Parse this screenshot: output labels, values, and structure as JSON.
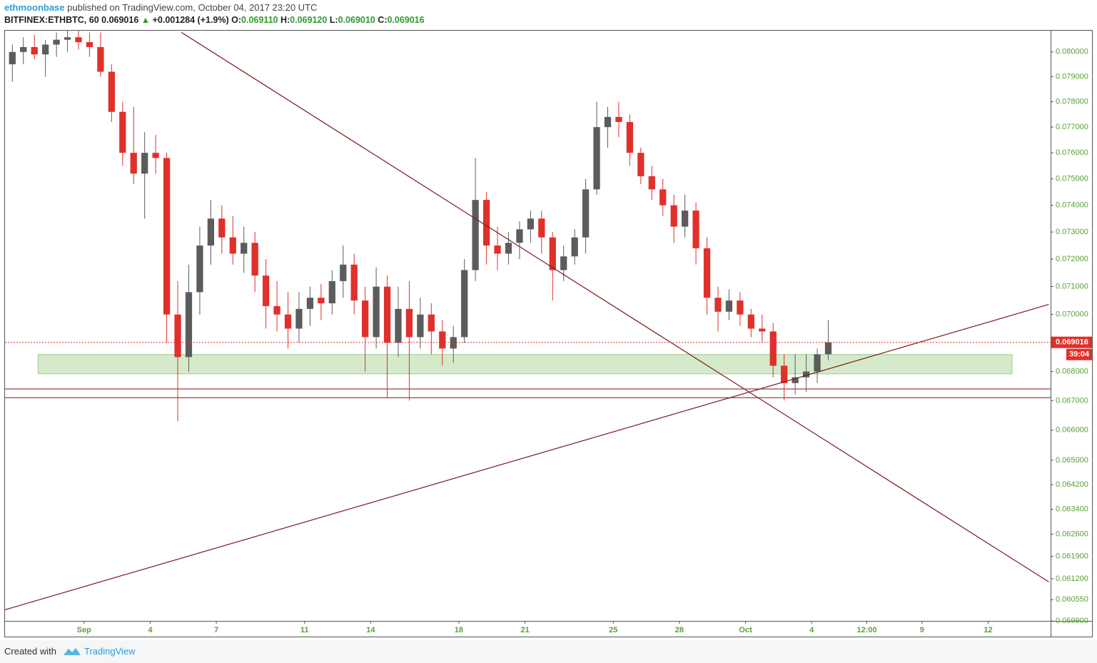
{
  "header": {
    "author": "ethmoonbase",
    "published": "published on TradingView.com, October 04, 2017 23:20 UTC",
    "symbol": "BITFINEX:ETHBTC, 60",
    "price": "0.069016",
    "change": "+0.001284 (+1.9%)",
    "o_label": "O:",
    "o": "0.069110",
    "h_label": "H:",
    "h": "0.069120",
    "l_label": "L:",
    "l": "0.069010",
    "c_label": "C:",
    "c": "0.069016"
  },
  "footer": {
    "created": "Created with",
    "brand": "TradingView"
  },
  "chart_data": {
    "type": "candlestick",
    "log_scale": true,
    "up_color": "#5c5c5c",
    "down_color": "#e0302b",
    "axis_color": "#5a9e3b",
    "xlim": [
      "2017-08-28T10:00",
      "2017-10-14T20:00"
    ],
    "ylim": [
      0.0599,
      0.0809
    ],
    "xticks": [
      {
        "value": "2017-09-01T00:00",
        "label": "Sep"
      },
      {
        "value": "2017-09-04T00:00",
        "label": "4"
      },
      {
        "value": "2017-09-07T00:00",
        "label": "7"
      },
      {
        "value": "2017-09-11T00:00",
        "label": "11"
      },
      {
        "value": "2017-09-14T00:00",
        "label": "14"
      },
      {
        "value": "2017-09-18T00:00",
        "label": "18"
      },
      {
        "value": "2017-09-21T00:00",
        "label": "21"
      },
      {
        "value": "2017-09-25T00:00",
        "label": "25"
      },
      {
        "value": "2017-09-28T00:00",
        "label": "28"
      },
      {
        "value": "2017-10-01T00:00",
        "label": "Oct"
      },
      {
        "value": "2017-10-04T00:00",
        "label": "4"
      },
      {
        "value": "2017-10-06T12:00",
        "label": "12:00"
      },
      {
        "value": "2017-10-09T00:00",
        "label": "9"
      },
      {
        "value": "2017-10-12T00:00",
        "label": "12"
      }
    ],
    "yticks": [
      {
        "value": 0.08,
        "label": "0.080000"
      },
      {
        "value": 0.079,
        "label": "0.079000"
      },
      {
        "value": 0.078,
        "label": "0.078000"
      },
      {
        "value": 0.077,
        "label": "0.077000"
      },
      {
        "value": 0.076,
        "label": "0.076000"
      },
      {
        "value": 0.075,
        "label": "0.075000"
      },
      {
        "value": 0.074,
        "label": "0.074000"
      },
      {
        "value": 0.073,
        "label": "0.073000"
      },
      {
        "value": 0.072,
        "label": "0.072000"
      },
      {
        "value": 0.071,
        "label": "0.071000"
      },
      {
        "value": 0.07,
        "label": "0.070000"
      },
      {
        "value": 0.068,
        "label": "0.068000"
      },
      {
        "value": 0.067,
        "label": "0.067000"
      },
      {
        "value": 0.066,
        "label": "0.066000"
      },
      {
        "value": 0.065,
        "label": "0.065000"
      },
      {
        "value": 0.0642,
        "label": "0.064200"
      },
      {
        "value": 0.0634,
        "label": "0.063400"
      },
      {
        "value": 0.0626,
        "label": "0.062600"
      },
      {
        "value": 0.0619,
        "label": "0.061900"
      },
      {
        "value": 0.0612,
        "label": "0.061200"
      },
      {
        "value": 0.06055,
        "label": "0.060550"
      },
      {
        "value": 0.0599,
        "label": "0.059900"
      }
    ],
    "last_price": {
      "value": 0.069016,
      "label": "0.069016"
    },
    "countdown": "39:04",
    "zone": {
      "start": "2017-08-29T22:00",
      "end": "2017-10-13T02:00",
      "low": 0.06792,
      "high": 0.06859,
      "color": "#c9e5bd"
    },
    "levels": [
      0.0674,
      0.0671
    ],
    "line_color": "#7a1a1a",
    "trend_lines": [
      {
        "x": [
          "2017-09-05T10:00",
          "2017-10-14T18:00"
        ],
        "y": [
          0.0808,
          0.0611
        ]
      },
      {
        "x": [
          "2017-08-28T10:00",
          "2017-10-14T18:00"
        ],
        "y": [
          0.06024,
          0.07036
        ]
      }
    ],
    "candles": [
      {
        "x": "2017-08-28T12:00",
        "open": 0.0795,
        "high": 0.0803,
        "low": 0.0788,
        "close": 0.08
      },
      {
        "x": "2017-08-29T00:00",
        "open": 0.08,
        "high": 0.0806,
        "low": 0.0795,
        "close": 0.0802
      },
      {
        "x": "2017-08-29T12:00",
        "open": 0.0802,
        "high": 0.0807,
        "low": 0.0797,
        "close": 0.0799
      },
      {
        "x": "2017-08-30T00:00",
        "open": 0.0799,
        "high": 0.0805,
        "low": 0.079,
        "close": 0.0803
      },
      {
        "x": "2017-08-30T12:00",
        "open": 0.0803,
        "high": 0.0808,
        "low": 0.0798,
        "close": 0.0805
      },
      {
        "x": "2017-08-31T00:00",
        "open": 0.0805,
        "high": 0.0809,
        "low": 0.08,
        "close": 0.0806
      },
      {
        "x": "2017-08-31T12:00",
        "open": 0.0806,
        "high": 0.0809,
        "low": 0.0801,
        "close": 0.0804
      },
      {
        "x": "2017-09-01T00:00",
        "open": 0.0804,
        "high": 0.0808,
        "low": 0.0798,
        "close": 0.0802
      },
      {
        "x": "2017-09-01T12:00",
        "open": 0.0802,
        "high": 0.0808,
        "low": 0.079,
        "close": 0.0792
      },
      {
        "x": "2017-09-02T00:00",
        "open": 0.0792,
        "high": 0.0795,
        "low": 0.0772,
        "close": 0.0776
      },
      {
        "x": "2017-09-02T12:00",
        "open": 0.0776,
        "high": 0.078,
        "low": 0.0755,
        "close": 0.076
      },
      {
        "x": "2017-09-03T00:00",
        "open": 0.076,
        "high": 0.0778,
        "low": 0.0748,
        "close": 0.0752
      },
      {
        "x": "2017-09-03T12:00",
        "open": 0.0752,
        "high": 0.0768,
        "low": 0.0735,
        "close": 0.076
      },
      {
        "x": "2017-09-04T00:00",
        "open": 0.076,
        "high": 0.0767,
        "low": 0.0752,
        "close": 0.0758
      },
      {
        "x": "2017-09-04T12:00",
        "open": 0.0758,
        "high": 0.076,
        "low": 0.069,
        "close": 0.07
      },
      {
        "x": "2017-09-05T00:00",
        "open": 0.07,
        "high": 0.0712,
        "low": 0.0663,
        "close": 0.0685
      },
      {
        "x": "2017-09-05T12:00",
        "open": 0.0685,
        "high": 0.0718,
        "low": 0.068,
        "close": 0.0708
      },
      {
        "x": "2017-09-06T00:00",
        "open": 0.0708,
        "high": 0.0732,
        "low": 0.07,
        "close": 0.0725
      },
      {
        "x": "2017-09-06T12:00",
        "open": 0.0725,
        "high": 0.0742,
        "low": 0.0718,
        "close": 0.0735
      },
      {
        "x": "2017-09-07T00:00",
        "open": 0.0735,
        "high": 0.074,
        "low": 0.0722,
        "close": 0.0728
      },
      {
        "x": "2017-09-07T12:00",
        "open": 0.0728,
        "high": 0.0736,
        "low": 0.0718,
        "close": 0.0722
      },
      {
        "x": "2017-09-08T00:00",
        "open": 0.0722,
        "high": 0.0732,
        "low": 0.0715,
        "close": 0.0726
      },
      {
        "x": "2017-09-08T12:00",
        "open": 0.0726,
        "high": 0.073,
        "low": 0.0708,
        "close": 0.0714
      },
      {
        "x": "2017-09-09T00:00",
        "open": 0.0714,
        "high": 0.072,
        "low": 0.0695,
        "close": 0.0703
      },
      {
        "x": "2017-09-09T12:00",
        "open": 0.0703,
        "high": 0.0712,
        "low": 0.0694,
        "close": 0.07
      },
      {
        "x": "2017-09-10T00:00",
        "open": 0.07,
        "high": 0.0708,
        "low": 0.0688,
        "close": 0.0695
      },
      {
        "x": "2017-09-10T12:00",
        "open": 0.0695,
        "high": 0.0708,
        "low": 0.069,
        "close": 0.0702
      },
      {
        "x": "2017-09-11T00:00",
        "open": 0.0702,
        "high": 0.071,
        "low": 0.0696,
        "close": 0.0706
      },
      {
        "x": "2017-09-11T12:00",
        "open": 0.0706,
        "high": 0.0711,
        "low": 0.0698,
        "close": 0.0704
      },
      {
        "x": "2017-09-12T00:00",
        "open": 0.0704,
        "high": 0.0716,
        "low": 0.07,
        "close": 0.0712
      },
      {
        "x": "2017-09-12T12:00",
        "open": 0.0712,
        "high": 0.0725,
        "low": 0.0706,
        "close": 0.0718
      },
      {
        "x": "2017-09-13T00:00",
        "open": 0.0718,
        "high": 0.0722,
        "low": 0.07,
        "close": 0.0705
      },
      {
        "x": "2017-09-13T12:00",
        "open": 0.0705,
        "high": 0.071,
        "low": 0.068,
        "close": 0.0692
      },
      {
        "x": "2017-09-14T00:00",
        "open": 0.0692,
        "high": 0.0717,
        "low": 0.0688,
        "close": 0.071
      },
      {
        "x": "2017-09-14T12:00",
        "open": 0.071,
        "high": 0.0714,
        "low": 0.0671,
        "close": 0.069
      },
      {
        "x": "2017-09-15T00:00",
        "open": 0.069,
        "high": 0.071,
        "low": 0.0685,
        "close": 0.0702
      },
      {
        "x": "2017-09-15T12:00",
        "open": 0.0702,
        "high": 0.0712,
        "low": 0.067,
        "close": 0.0692
      },
      {
        "x": "2017-09-16T00:00",
        "open": 0.0692,
        "high": 0.0706,
        "low": 0.0688,
        "close": 0.07
      },
      {
        "x": "2017-09-16T12:00",
        "open": 0.07,
        "high": 0.0704,
        "low": 0.0686,
        "close": 0.0694
      },
      {
        "x": "2017-09-17T00:00",
        "open": 0.0694,
        "high": 0.0698,
        "low": 0.0682,
        "close": 0.0688
      },
      {
        "x": "2017-09-17T12:00",
        "open": 0.0688,
        "high": 0.0696,
        "low": 0.0683,
        "close": 0.0692
      },
      {
        "x": "2017-09-18T00:00",
        "open": 0.0692,
        "high": 0.072,
        "low": 0.069,
        "close": 0.0716
      },
      {
        "x": "2017-09-18T12:00",
        "open": 0.0716,
        "high": 0.0758,
        "low": 0.0712,
        "close": 0.0742
      },
      {
        "x": "2017-09-19T00:00",
        "open": 0.0742,
        "high": 0.0745,
        "low": 0.0718,
        "close": 0.0725
      },
      {
        "x": "2017-09-19T12:00",
        "open": 0.0725,
        "high": 0.0732,
        "low": 0.0716,
        "close": 0.0722
      },
      {
        "x": "2017-09-20T00:00",
        "open": 0.0722,
        "high": 0.073,
        "low": 0.0718,
        "close": 0.0726
      },
      {
        "x": "2017-09-20T12:00",
        "open": 0.0726,
        "high": 0.0734,
        "low": 0.072,
        "close": 0.0731
      },
      {
        "x": "2017-09-21T00:00",
        "open": 0.0731,
        "high": 0.0738,
        "low": 0.0726,
        "close": 0.0735
      },
      {
        "x": "2017-09-21T12:00",
        "open": 0.0735,
        "high": 0.0738,
        "low": 0.0722,
        "close": 0.0728
      },
      {
        "x": "2017-09-22T00:00",
        "open": 0.0728,
        "high": 0.073,
        "low": 0.0705,
        "close": 0.0716
      },
      {
        "x": "2017-09-22T12:00",
        "open": 0.0716,
        "high": 0.0725,
        "low": 0.0712,
        "close": 0.0721
      },
      {
        "x": "2017-09-23T00:00",
        "open": 0.0721,
        "high": 0.0731,
        "low": 0.0718,
        "close": 0.0728
      },
      {
        "x": "2017-09-23T12:00",
        "open": 0.0728,
        "high": 0.075,
        "low": 0.0722,
        "close": 0.0746
      },
      {
        "x": "2017-09-24T00:00",
        "open": 0.0746,
        "high": 0.078,
        "low": 0.0744,
        "close": 0.077
      },
      {
        "x": "2017-09-24T12:00",
        "open": 0.077,
        "high": 0.0778,
        "low": 0.0762,
        "close": 0.0774
      },
      {
        "x": "2017-09-25T00:00",
        "open": 0.0774,
        "high": 0.078,
        "low": 0.0766,
        "close": 0.0772
      },
      {
        "x": "2017-09-25T12:00",
        "open": 0.0772,
        "high": 0.0775,
        "low": 0.0755,
        "close": 0.076
      },
      {
        "x": "2017-09-26T00:00",
        "open": 0.076,
        "high": 0.0762,
        "low": 0.0748,
        "close": 0.0751
      },
      {
        "x": "2017-09-26T12:00",
        "open": 0.0751,
        "high": 0.0755,
        "low": 0.0742,
        "close": 0.0746
      },
      {
        "x": "2017-09-27T00:00",
        "open": 0.0746,
        "high": 0.075,
        "low": 0.0736,
        "close": 0.074
      },
      {
        "x": "2017-09-27T12:00",
        "open": 0.074,
        "high": 0.0744,
        "low": 0.0726,
        "close": 0.0732
      },
      {
        "x": "2017-09-28T00:00",
        "open": 0.0732,
        "high": 0.0744,
        "low": 0.0728,
        "close": 0.0738
      },
      {
        "x": "2017-09-28T12:00",
        "open": 0.0738,
        "high": 0.0741,
        "low": 0.0718,
        "close": 0.0724
      },
      {
        "x": "2017-09-29T00:00",
        "open": 0.0724,
        "high": 0.0728,
        "low": 0.07,
        "close": 0.0706
      },
      {
        "x": "2017-09-29T12:00",
        "open": 0.0706,
        "high": 0.071,
        "low": 0.0694,
        "close": 0.0701
      },
      {
        "x": "2017-09-30T00:00",
        "open": 0.0701,
        "high": 0.0709,
        "low": 0.0698,
        "close": 0.0705
      },
      {
        "x": "2017-09-30T12:00",
        "open": 0.0705,
        "high": 0.0708,
        "low": 0.0696,
        "close": 0.07
      },
      {
        "x": "2017-10-01T00:00",
        "open": 0.07,
        "high": 0.0702,
        "low": 0.0692,
        "close": 0.0695
      },
      {
        "x": "2017-10-01T12:00",
        "open": 0.0695,
        "high": 0.07,
        "low": 0.069,
        "close": 0.0694
      },
      {
        "x": "2017-10-02T00:00",
        "open": 0.0694,
        "high": 0.0697,
        "low": 0.0678,
        "close": 0.0682
      },
      {
        "x": "2017-10-02T12:00",
        "open": 0.0682,
        "high": 0.0686,
        "low": 0.067,
        "close": 0.0676
      },
      {
        "x": "2017-10-03T00:00",
        "open": 0.0676,
        "high": 0.0686,
        "low": 0.0672,
        "close": 0.0678
      },
      {
        "x": "2017-10-03T12:00",
        "open": 0.0678,
        "high": 0.0686,
        "low": 0.0673,
        "close": 0.068
      },
      {
        "x": "2017-10-04T00:00",
        "open": 0.068,
        "high": 0.0688,
        "low": 0.0676,
        "close": 0.0686
      },
      {
        "x": "2017-10-04T12:00",
        "open": 0.0686,
        "high": 0.0698,
        "low": 0.0684,
        "close": 0.069016
      }
    ]
  }
}
